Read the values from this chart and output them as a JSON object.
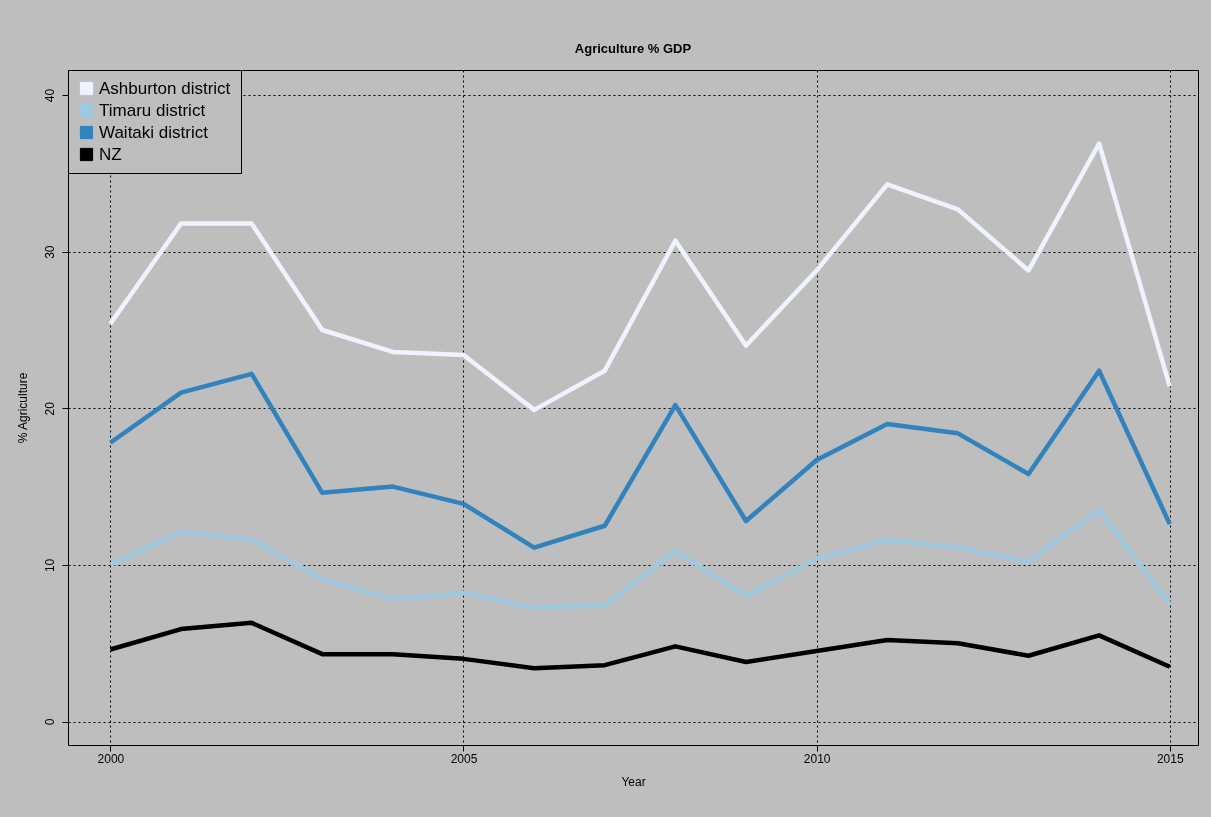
{
  "chart_data": {
    "type": "line",
    "title": "Agriculture % GDP",
    "xlabel": "Year",
    "ylabel": "% Agriculture",
    "x": [
      2000,
      2001,
      2002,
      2003,
      2004,
      2005,
      2006,
      2007,
      2008,
      2009,
      2010,
      2011,
      2012,
      2013,
      2014,
      2015
    ],
    "xlim": [
      1999.4,
      2015.4
    ],
    "xticks": [
      2000,
      2005,
      2010,
      2015
    ],
    "ylim": [
      -1.5,
      41.6
    ],
    "yticks": [
      0,
      10,
      20,
      30,
      40
    ],
    "grid": true,
    "legend": "top left",
    "marker": "none",
    "line_style": "solid",
    "series": [
      {
        "name": "Ashburton district",
        "color": "#eff3ff",
        "values": [
          25.4,
          31.8,
          31.8,
          25.0,
          23.6,
          23.4,
          19.9,
          22.4,
          30.7,
          24.0,
          28.8,
          34.3,
          32.7,
          28.8,
          36.9,
          21.4
        ]
      },
      {
        "name": "Timaru district",
        "color": "#9ecae1",
        "values": [
          10.0,
          12.1,
          11.6,
          9.1,
          7.8,
          8.2,
          7.3,
          7.4,
          10.9,
          8.0,
          10.4,
          11.6,
          11.1,
          10.2,
          13.5,
          7.5
        ]
      },
      {
        "name": "Waitaki district",
        "color": "#3182bd",
        "values": [
          17.8,
          21.0,
          22.2,
          14.6,
          15.0,
          13.9,
          11.1,
          12.5,
          20.2,
          12.8,
          16.7,
          19.0,
          18.4,
          15.8,
          22.4,
          12.6
        ]
      },
      {
        "name": "NZ",
        "color": "#000000",
        "values": [
          4.6,
          5.9,
          6.3,
          4.3,
          4.3,
          4.0,
          3.4,
          3.6,
          4.8,
          3.8,
          4.5,
          5.2,
          5.0,
          4.2,
          5.5,
          3.5
        ]
      }
    ]
  }
}
